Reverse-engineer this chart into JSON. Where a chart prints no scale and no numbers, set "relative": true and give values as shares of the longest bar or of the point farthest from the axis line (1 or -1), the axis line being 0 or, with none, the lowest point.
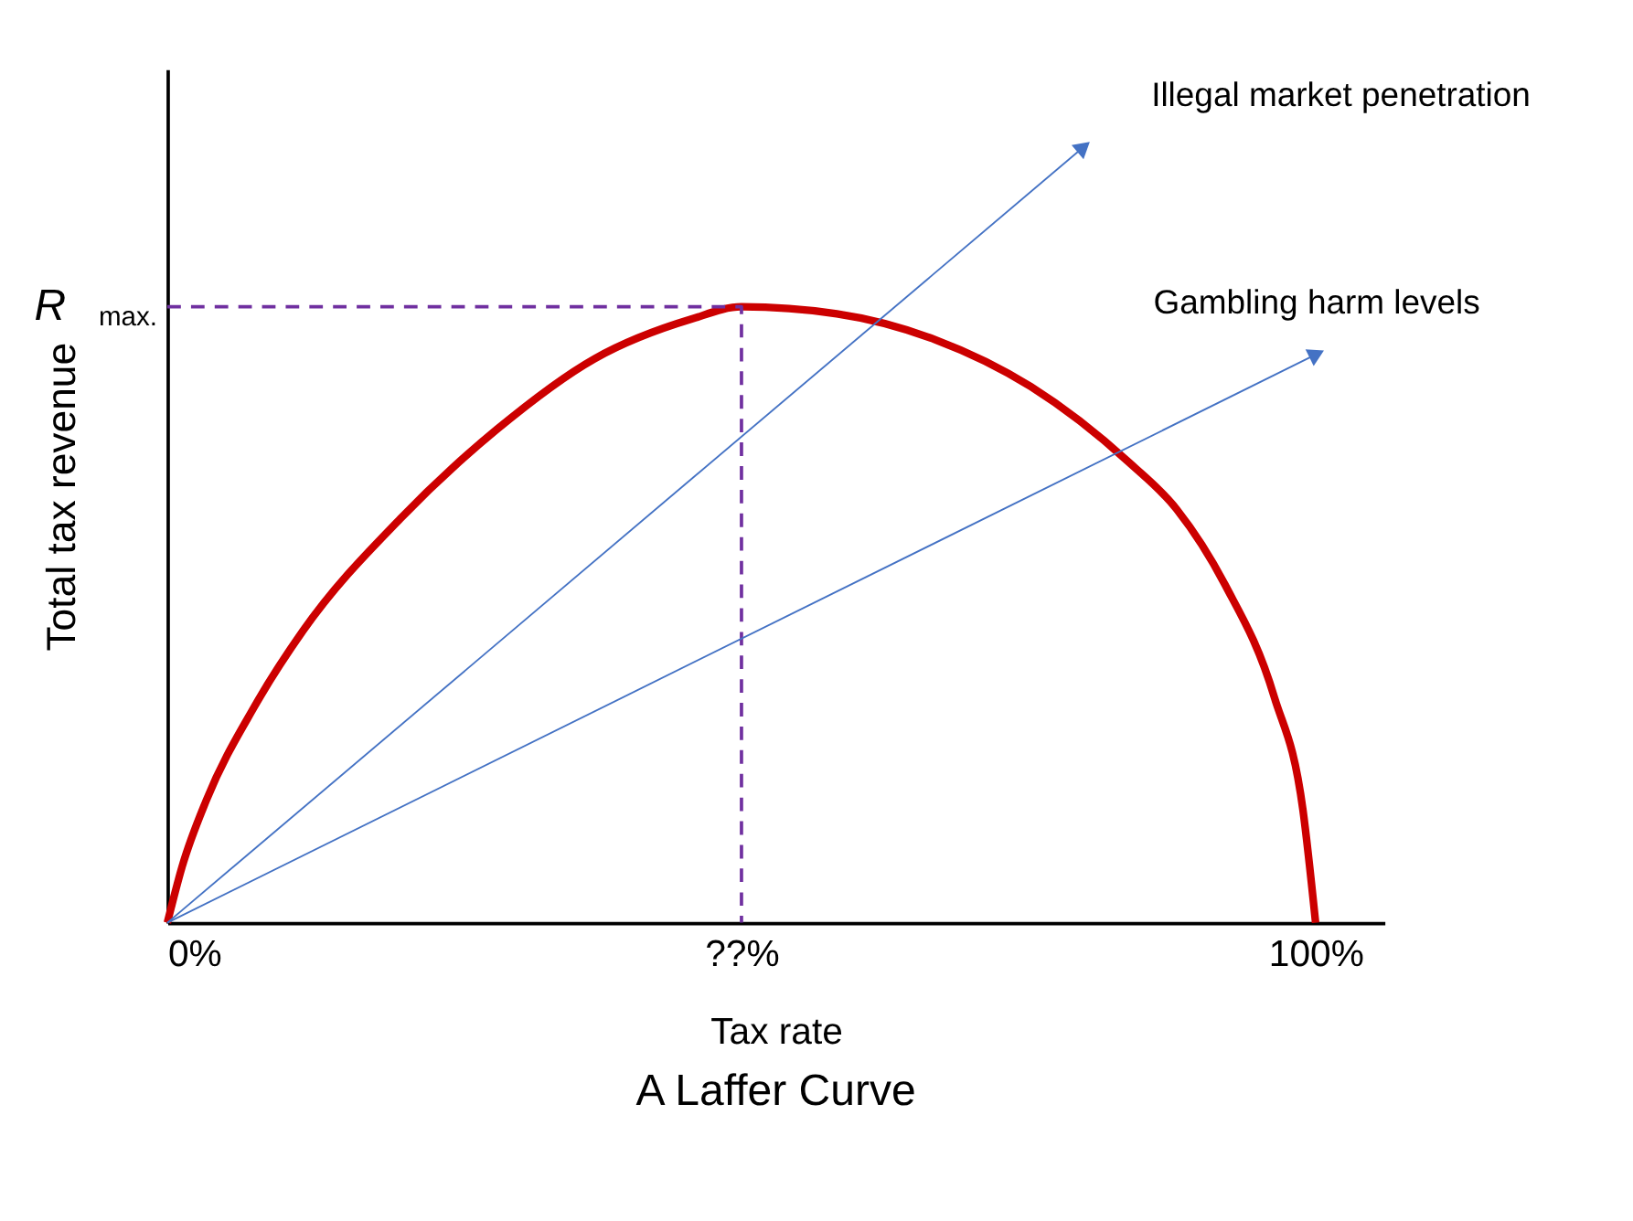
{
  "chart_data": {
    "type": "line",
    "title": "A Laffer Curve",
    "xlabel": "Tax rate",
    "ylabel": "Total tax revenue",
    "relative": true,
    "xlim": [
      0,
      106
    ],
    "xticks": [
      {
        "value": 0,
        "label": "0%"
      },
      {
        "value": 50,
        "label": "??%"
      },
      {
        "value": 100,
        "label": "100%"
      }
    ],
    "tick_labels": "x",
    "grid": false,
    "series": [
      {
        "color": "#cc0000",
        "line_style": "solid",
        "x": [
          0,
          1.3,
          3.4,
          7.6,
          11.8,
          20.3,
          28.7,
          37.2,
          45.6,
          50,
          58.3,
          66.8,
          75.2,
          83.7,
          87.9,
          92.1,
          96.4,
          98.9,
          100
        ],
        "values": [
          0,
          0.073,
          0.158,
          0.279,
          0.376,
          0.521,
          0.636,
          0.727,
          0.778,
          0.794,
          0.785,
          0.752,
          0.691,
          0.594,
          0.533,
          0.436,
          0.291,
          0.145,
          0
        ]
      },
      {
        "color": "#7030a0",
        "line_style": "dashed",
        "x": [
          0,
          50,
          50
        ],
        "values": [
          0.794,
          0.794,
          0
        ]
      },
      {
        "name": "Illegal market penetration",
        "color": "#4472c4",
        "line_style": "solid",
        "marker": "triangle",
        "x": [
          0,
          79.8
        ],
        "values": [
          0,
          1
        ]
      },
      {
        "name": "Gambling harm levels",
        "color": "#4472c4",
        "line_style": "solid",
        "marker": "triangle",
        "x": [
          0,
          100.1
        ],
        "values": [
          0,
          0.733
        ]
      }
    ],
    "annotations": [
      {
        "text": "R$_{max.}$",
        "x": 0,
        "y": 0.794
      }
    ]
  }
}
